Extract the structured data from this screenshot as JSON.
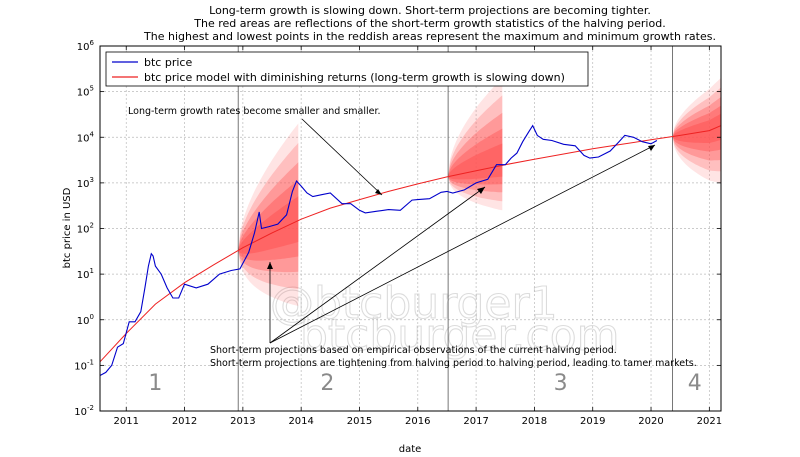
{
  "chart_data": {
    "type": "line",
    "title_lines": [
      "Long-term growth is slowing down. Short-term projections are becoming tighter.",
      "The red areas are reflections of the short-term growth statistics of the halving period.",
      "The highest and lowest points in the reddish areas represent the maximum and minimum growth rates."
    ],
    "xlabel": "date",
    "ylabel": "btc price in USD",
    "y_scale": "log",
    "xlim": [
      2010.55,
      2021.2
    ],
    "ylim_exp": [
      -2,
      6
    ],
    "x_ticks": [
      "2011",
      "2012",
      "2013",
      "2014",
      "2015",
      "2016",
      "2017",
      "2018",
      "2019",
      "2020",
      "2021"
    ],
    "y_ticks": [
      {
        "base": "10",
        "exp": "-2"
      },
      {
        "base": "10",
        "exp": "-1"
      },
      {
        "base": "10",
        "exp": "0"
      },
      {
        "base": "10",
        "exp": "1"
      },
      {
        "base": "10",
        "exp": "2"
      },
      {
        "base": "10",
        "exp": "3"
      },
      {
        "base": "10",
        "exp": "4"
      },
      {
        "base": "10",
        "exp": "5"
      },
      {
        "base": "10",
        "exp": "6"
      }
    ],
    "grid": true,
    "legend_position": "top-left",
    "legend": [
      {
        "name": "btc price",
        "color": "#0000cc"
      },
      {
        "name": "btc price model with diminishing returns (long-term growth is slowing down)",
        "color": "#ee2222"
      }
    ],
    "series": [
      {
        "name": "btc price",
        "color": "#0000cc",
        "x": [
          2010.55,
          2010.65,
          2010.75,
          2010.85,
          2010.95,
          2011.05,
          2011.15,
          2011.25,
          2011.32,
          2011.38,
          2011.43,
          2011.46,
          2011.5,
          2011.6,
          2011.7,
          2011.8,
          2011.9,
          2012.0,
          2012.2,
          2012.4,
          2012.6,
          2012.8,
          2012.95,
          2013.1,
          2013.2,
          2013.28,
          2013.32,
          2013.45,
          2013.6,
          2013.75,
          2013.85,
          2013.92,
          2014.0,
          2014.1,
          2014.2,
          2014.35,
          2014.5,
          2014.7,
          2014.85,
          2015.0,
          2015.1,
          2015.3,
          2015.5,
          2015.7,
          2015.9,
          2016.0,
          2016.2,
          2016.4,
          2016.5,
          2016.6,
          2016.8,
          2017.0,
          2017.2,
          2017.35,
          2017.5,
          2017.6,
          2017.7,
          2017.8,
          2017.9,
          2017.97,
          2018.05,
          2018.15,
          2018.3,
          2018.5,
          2018.7,
          2018.85,
          2018.95,
          2019.1,
          2019.3,
          2019.45,
          2019.55,
          2019.7,
          2019.85,
          2020.0,
          2020.1
        ],
        "y": [
          0.06,
          0.07,
          0.1,
          0.25,
          0.3,
          0.9,
          0.9,
          1.5,
          5,
          15,
          28,
          25,
          15,
          10,
          5,
          3,
          3,
          6,
          5,
          6,
          10,
          12,
          13,
          30,
          80,
          230,
          100,
          110,
          125,
          200,
          650,
          1100,
          850,
          600,
          500,
          550,
          600,
          350,
          350,
          250,
          220,
          240,
          260,
          250,
          420,
          430,
          450,
          620,
          650,
          600,
          700,
          1000,
          1200,
          2500,
          2500,
          3500,
          4500,
          8000,
          13000,
          18000,
          11000,
          9000,
          8500,
          7000,
          6500,
          4000,
          3500,
          3700,
          5000,
          8000,
          11000,
          10000,
          8000,
          7200,
          8500
        ]
      },
      {
        "name": "btc price model with diminishing returns (long-term growth is slowing down)",
        "color": "#ee2222",
        "x": [
          2010.55,
          2011.0,
          2011.5,
          2012.0,
          2012.5,
          2013.0,
          2013.5,
          2014.0,
          2014.5,
          2015.0,
          2015.5,
          2016.0,
          2016.5,
          2017.0,
          2017.5,
          2018.0,
          2018.5,
          2019.0,
          2019.5,
          2020.0,
          2020.5,
          2021.0,
          2021.2
        ],
        "y": [
          0.12,
          0.5,
          2.2,
          6.5,
          16,
          38,
          80,
          160,
          280,
          430,
          650,
          950,
          1350,
          1850,
          2500,
          3300,
          4300,
          5600,
          7000,
          8800,
          11000,
          14000,
          18000
        ]
      }
    ],
    "halving_lines_x": [
      2012.92,
      2016.52,
      2020.37
    ],
    "projection_bands": [
      {
        "x_range": [
          2012.92,
          2013.95
        ],
        "peak_high": 20000,
        "low": 2
      },
      {
        "x_range": [
          2016.52,
          2017.45
        ],
        "peak_high": 200000,
        "low": 250
      },
      {
        "x_range": [
          2020.37,
          2021.2
        ],
        "peak_high": 200000,
        "low": 1000
      }
    ],
    "period_labels": [
      {
        "text": "1",
        "x": 2011.5
      },
      {
        "text": "2",
        "x": 2014.45
      },
      {
        "text": "3",
        "x": 2018.45
      },
      {
        "text": "4",
        "x": 2020.75
      }
    ],
    "annotations": [
      {
        "text": "Long-term growth rates become smaller and smaller."
      },
      {
        "text": "Short-term projections based on empirical observations of the current halving period."
      },
      {
        "text": "Short-term projections are tightening from halving period to halving period, leading to tamer markets."
      }
    ]
  }
}
